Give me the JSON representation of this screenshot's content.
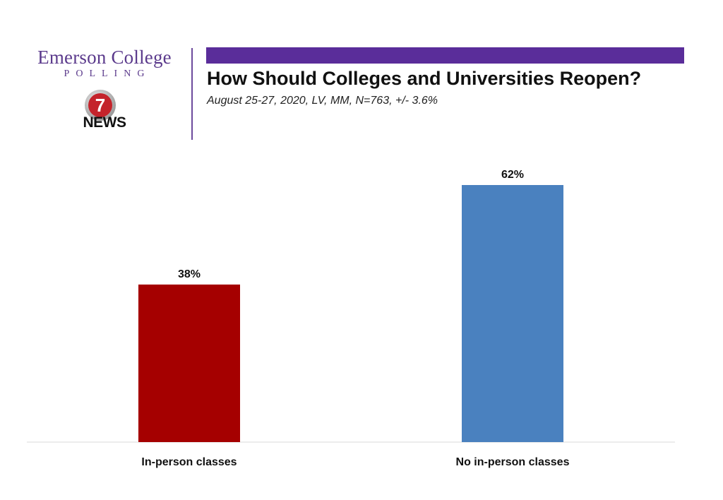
{
  "header": {
    "logo_title": "Emerson College",
    "logo_subtitle": "POLLING",
    "news_logo_number": "7",
    "news_logo_text": "NEWS",
    "title": "How Should Colleges and Universities Reopen?",
    "subtitle": "August 25-27, 2020, LV, MM, N=763, +/- 3.6%"
  },
  "colors": {
    "accent_bar": "#5a2d9a",
    "logo_text": "#5b3a8c",
    "news_red": "#c4232b"
  },
  "chart_data": {
    "type": "bar",
    "categories": [
      "In-person classes",
      "No in-person classes"
    ],
    "values": [
      38,
      62
    ],
    "data_labels": [
      "38%",
      "62%"
    ],
    "colors": [
      "#a50000",
      "#4a81bf"
    ],
    "title": "How Should Colleges and Universities Reopen?",
    "xlabel": "",
    "ylabel": "",
    "ylim": [
      0,
      62
    ],
    "grid": false,
    "legend": "none"
  }
}
